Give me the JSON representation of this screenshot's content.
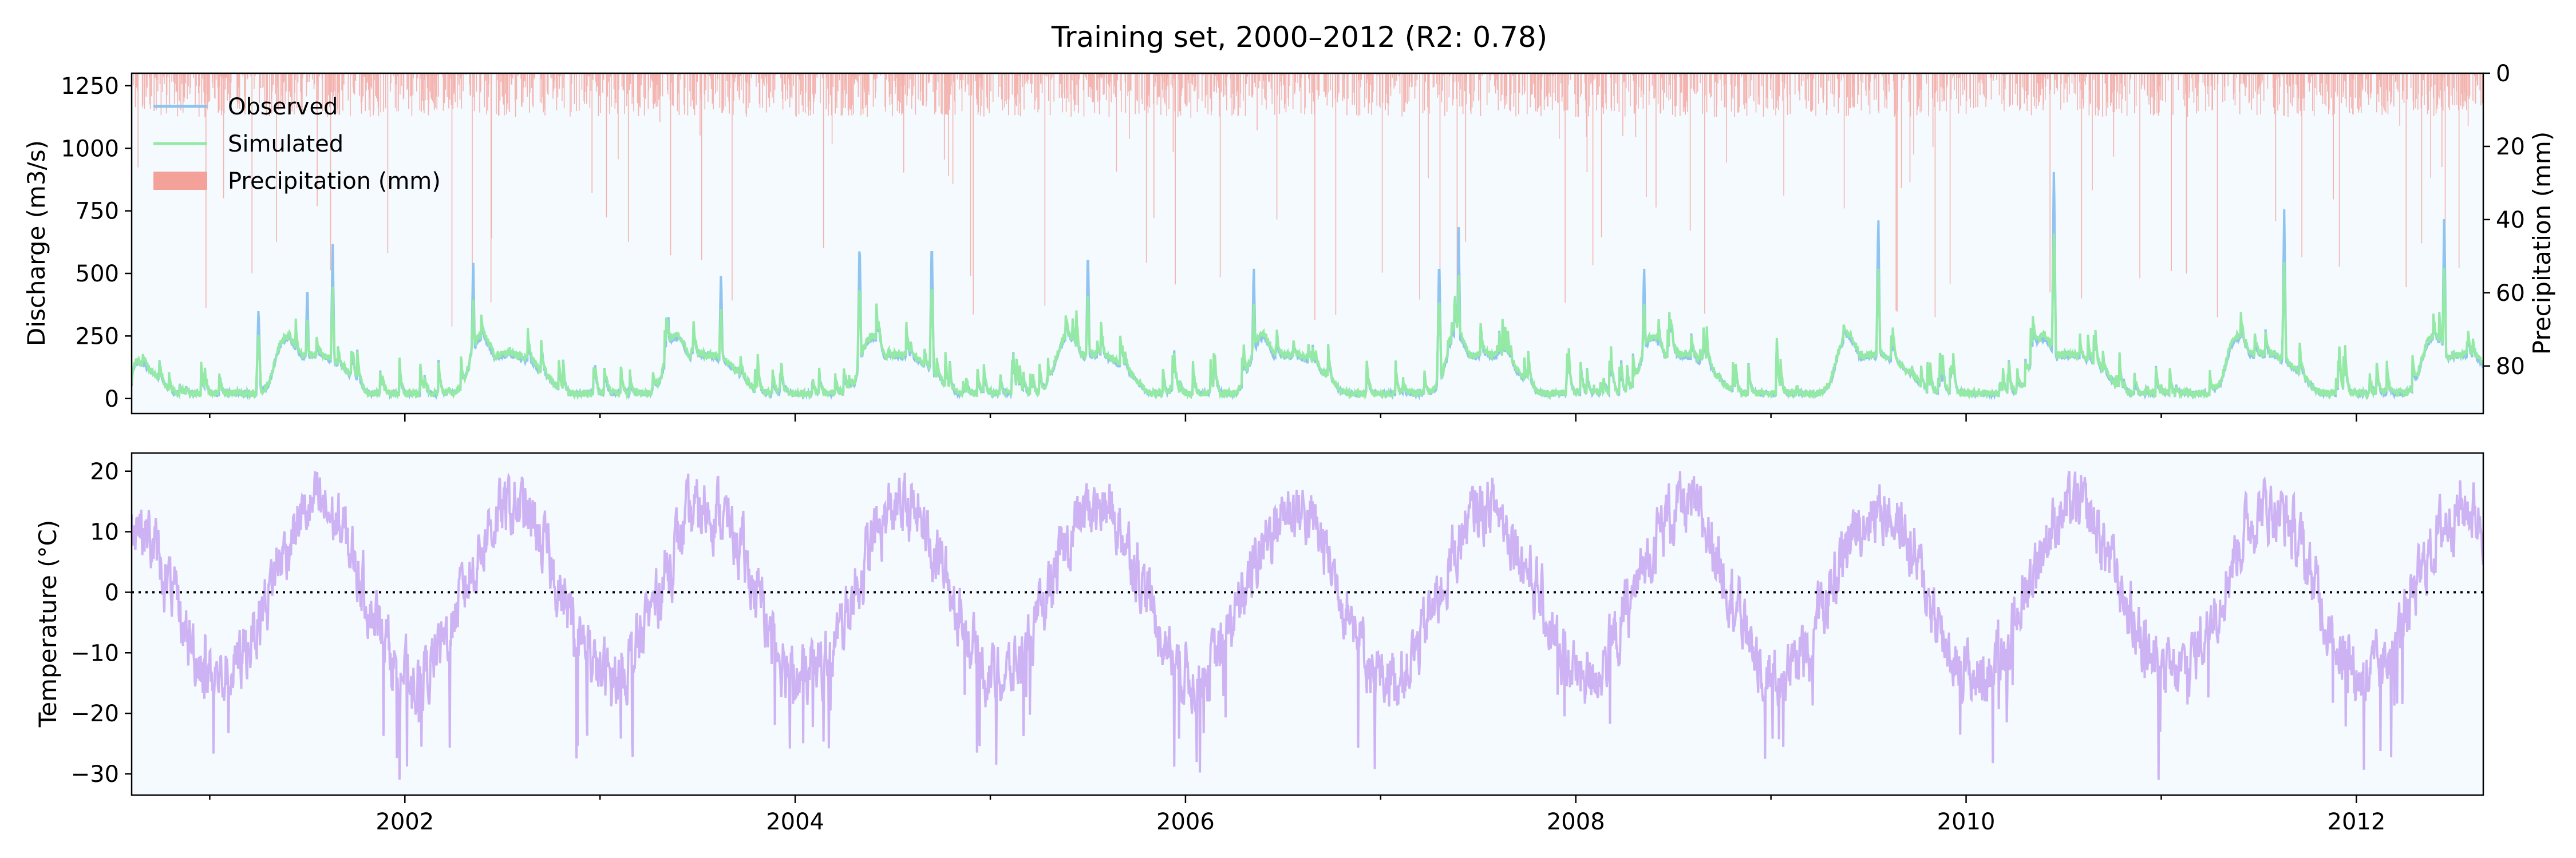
{
  "title": "Training set, 2000–2012 (R2: 0.78)",
  "colors": {
    "background": "#f5faff",
    "observed": "#8fc3f0",
    "simulated": "#94eaa4",
    "precipitation": "#f4a19a",
    "temperature": "#cdb3f3",
    "zero_line": "#000000"
  },
  "chart_data": [
    {
      "type": "line",
      "name": "discharge",
      "ylabel": "Discharge (m3/s)",
      "ylabel_right": "Precipitation (mm)",
      "xlim": [
        2000.6,
        2012.65
      ],
      "ylim": [
        -60,
        1300
      ],
      "ylim_right": [
        93,
        0
      ],
      "yticks": [
        0,
        250,
        500,
        750,
        1000,
        1250
      ],
      "yticks_right": [
        0,
        20,
        40,
        60,
        80
      ],
      "legend": {
        "placement": "upper-left",
        "entries": [
          "Observed",
          "Simulated",
          "Precipitation (mm)"
        ]
      },
      "annual_pattern": {
        "observed_peaks": [
          {
            "x": 2001.25,
            "y": 370
          },
          {
            "x": 2001.5,
            "y": 475
          },
          {
            "x": 2001.63,
            "y": 625
          },
          {
            "x": 2002.35,
            "y": 575
          },
          {
            "x": 2003.35,
            "y": 345
          },
          {
            "x": 2003.62,
            "y": 525
          },
          {
            "x": 2004.33,
            "y": 655
          },
          {
            "x": 2004.7,
            "y": 660
          },
          {
            "x": 2005.5,
            "y": 620
          },
          {
            "x": 2006.35,
            "y": 550
          },
          {
            "x": 2007.3,
            "y": 580
          },
          {
            "x": 2007.4,
            "y": 685
          },
          {
            "x": 2008.35,
            "y": 550
          },
          {
            "x": 2009.55,
            "y": 755
          },
          {
            "x": 2010.45,
            "y": 960
          },
          {
            "x": 2011.63,
            "y": 765
          },
          {
            "x": 2012.45,
            "y": 760
          }
        ]
      },
      "series": [
        {
          "name": "Observed"
        },
        {
          "name": "Simulated"
        },
        {
          "name": "Precipitation (mm)"
        }
      ]
    },
    {
      "type": "line",
      "name": "temperature",
      "ylabel": "Temperature (°C)",
      "xlim": [
        2000.6,
        2012.65
      ],
      "ylim": [
        -33.5,
        23
      ],
      "yticks": [
        -30,
        -20,
        -10,
        0,
        10,
        20
      ],
      "xticks": [
        2002,
        2004,
        2006,
        2008,
        2010,
        2012
      ],
      "hline": 0,
      "seasonal": {
        "mean": 0,
        "amplitude": 14,
        "peak_phase": 0.55
      },
      "series": [
        {
          "name": "Temperature"
        }
      ]
    }
  ]
}
